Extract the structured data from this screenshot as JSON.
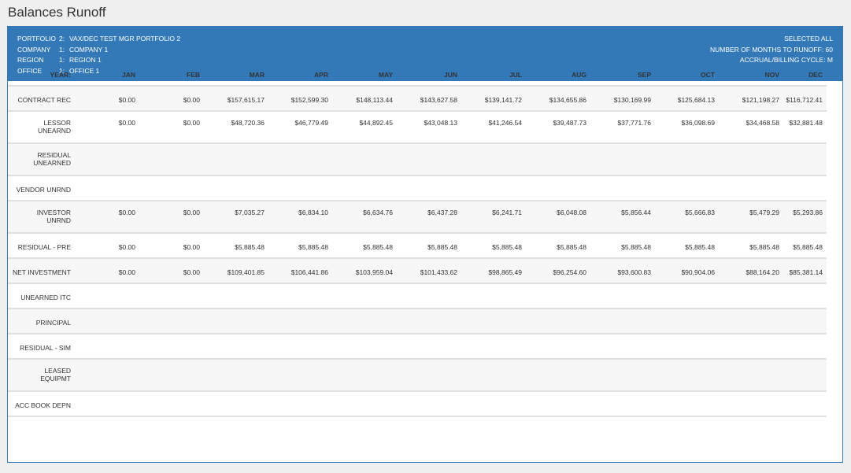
{
  "page": {
    "title": "Balances Runoff"
  },
  "header": {
    "left": [
      {
        "label": "PORTFOLIO",
        "num": "2:",
        "value": "VAX/DEC TEST MGR PORTFOLIO 2"
      },
      {
        "label": "COMPANY",
        "num": "1:",
        "value": "COMPANY 1"
      },
      {
        "label": "REGION",
        "num": "1:",
        "value": "REGION 1"
      },
      {
        "label": "OFFICE",
        "num": "1:",
        "value": "OFFICE 1"
      }
    ],
    "right": [
      "SELECTED ALL",
      "NUMBER OF MONTHS TO RUNOFF: 60",
      "ACCRUAL/BILLING CYCLE: M"
    ]
  },
  "table": {
    "year_label": "YEAR:",
    "months": [
      "JAN",
      "FEB",
      "MAR",
      "APR",
      "MAY",
      "JUN",
      "JUL",
      "AUG",
      "SEP",
      "OCT",
      "NOV",
      "DEC"
    ],
    "rows": [
      {
        "label": [
          "CONTRACT REC"
        ],
        "values": [
          "$0.00",
          "$0.00",
          "$157,615.17",
          "$152,599.30",
          "$148,113.44",
          "$143,627.58",
          "$139,141.72",
          "$134,655.86",
          "$130,169.99",
          "$125,684.13",
          "$121,198.27",
          "$116,712.41"
        ]
      },
      {
        "label": [
          "LESSOR",
          "UNEARND"
        ],
        "values": [
          "$0.00",
          "$0.00",
          "$48,720.36",
          "$46,779.49",
          "$44,892.45",
          "$43,048.13",
          "$41,246.54",
          "$39,487.73",
          "$37,771.76",
          "$36,098.69",
          "$34,468.58",
          "$32,881.48"
        ]
      },
      {
        "label": [
          "RESIDUAL",
          "UNEARNED"
        ],
        "values": []
      },
      {
        "label": [
          "VENDOR UNRND"
        ],
        "values": []
      },
      {
        "label": [
          "INVESTOR",
          "UNRND"
        ],
        "values": [
          "$0.00",
          "$0.00",
          "$7,035.27",
          "$6,834.10",
          "$6,634.76",
          "$6,437.28",
          "$6,241.71",
          "$6,048.08",
          "$5,856.44",
          "$5,666.83",
          "$5,479.29",
          "$5,293.86"
        ]
      },
      {
        "label": [
          "RESIDUAL - PRE"
        ],
        "values": [
          "$0.00",
          "$0.00",
          "$5,885.48",
          "$5,885.48",
          "$5,885.48",
          "$5,885.48",
          "$5,885.48",
          "$5,885.48",
          "$5,885.48",
          "$5,885.48",
          "$5,885.48",
          "$5,885.48"
        ]
      },
      {
        "label": [
          "NET INVESTMENT"
        ],
        "values": [
          "$0.00",
          "$0.00",
          "$109,401.85",
          "$106,441.86",
          "$103,959.04",
          "$101,433.62",
          "$98,865.49",
          "$96,254.60",
          "$93,600.83",
          "$90,904.06",
          "$88,164.20",
          "$85,381.14"
        ]
      },
      {
        "label": [
          "UNEARNED ITC"
        ],
        "values": []
      },
      {
        "label": [
          "PRINCIPAL"
        ],
        "values": []
      },
      {
        "label": [
          "RESIDUAL - SIM"
        ],
        "values": []
      },
      {
        "label": [
          "LEASED",
          "EQUIPMT"
        ],
        "values": []
      },
      {
        "label": [
          "ACC BOOK DEPN"
        ],
        "values": []
      }
    ]
  }
}
